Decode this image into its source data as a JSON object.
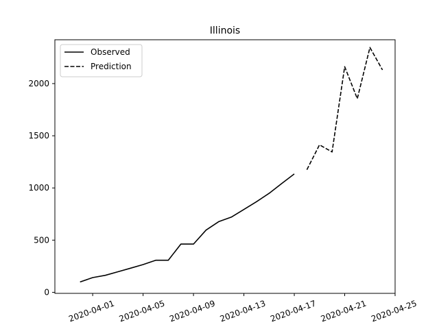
{
  "chart_data": {
    "type": "line",
    "title": "Illinois",
    "xlabel": "",
    "ylabel": "",
    "xlim": [
      "2020-03-29",
      "2020-04-25"
    ],
    "ylim": [
      -10,
      2420
    ],
    "grid": false,
    "legend_position": "top-left",
    "x_ticks": [
      "2020-04-01",
      "2020-04-05",
      "2020-04-09",
      "2020-04-13",
      "2020-04-17",
      "2020-04-21",
      "2020-04-25"
    ],
    "y_ticks": [
      0,
      500,
      1000,
      1500,
      2000
    ],
    "series": [
      {
        "name": "Observed",
        "style": "solid",
        "color": "#000000",
        "x": [
          "2020-03-31",
          "2020-04-01",
          "2020-04-02",
          "2020-04-03",
          "2020-04-04",
          "2020-04-05",
          "2020-04-06",
          "2020-04-07",
          "2020-04-08",
          "2020-04-09",
          "2020-04-10",
          "2020-04-11",
          "2020-04-12",
          "2020-04-13",
          "2020-04-14",
          "2020-04-15",
          "2020-04-16",
          "2020-04-17"
        ],
        "values": [
          99,
          141,
          163,
          197,
          231,
          266,
          307,
          307,
          462,
          462,
          596,
          677,
          720,
          794,
          868,
          948,
          1042,
          1134
        ]
      },
      {
        "name": "Prediction",
        "style": "dashed",
        "color": "#000000",
        "x": [
          "2020-04-18",
          "2020-04-19",
          "2020-04-20",
          "2020-04-21",
          "2020-04-22",
          "2020-04-23",
          "2020-04-24"
        ],
        "values": [
          1175,
          1413,
          1345,
          2162,
          1855,
          2346,
          2131
        ]
      }
    ]
  }
}
